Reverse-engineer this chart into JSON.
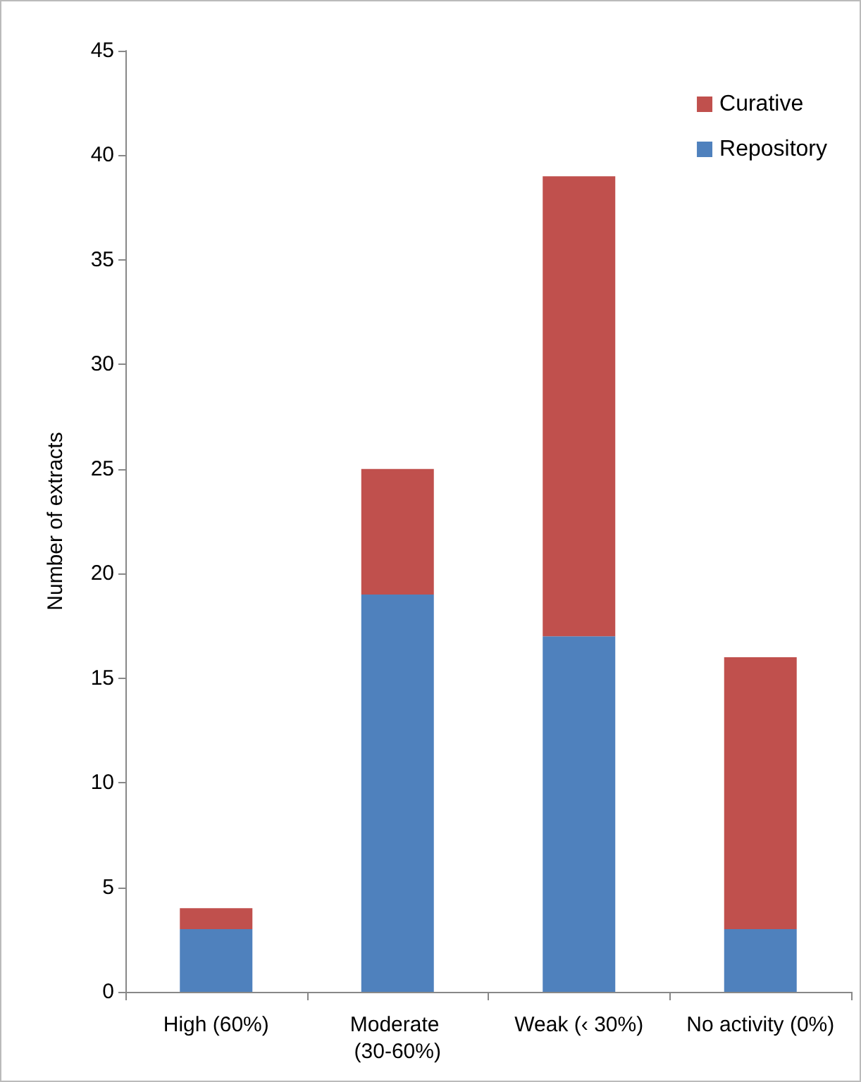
{
  "chart_data": {
    "type": "bar",
    "stacked": true,
    "ylabel": "Number of extracts",
    "categories": [
      "High (60%)",
      "Moderate (30-60%)",
      "Weak (‹ 30%)",
      "No activity (0%)"
    ],
    "series": [
      {
        "name": "Repository",
        "color": "#4f81bd",
        "values": [
          3,
          19,
          17,
          3
        ]
      },
      {
        "name": "Curative",
        "color": "#c0504d",
        "values": [
          1,
          6,
          22,
          13
        ]
      }
    ],
    "ylim": [
      0,
      45
    ],
    "yticks": [
      0,
      5,
      10,
      15,
      20,
      25,
      30,
      35,
      40,
      45
    ],
    "grid": false,
    "legend": "top right"
  }
}
